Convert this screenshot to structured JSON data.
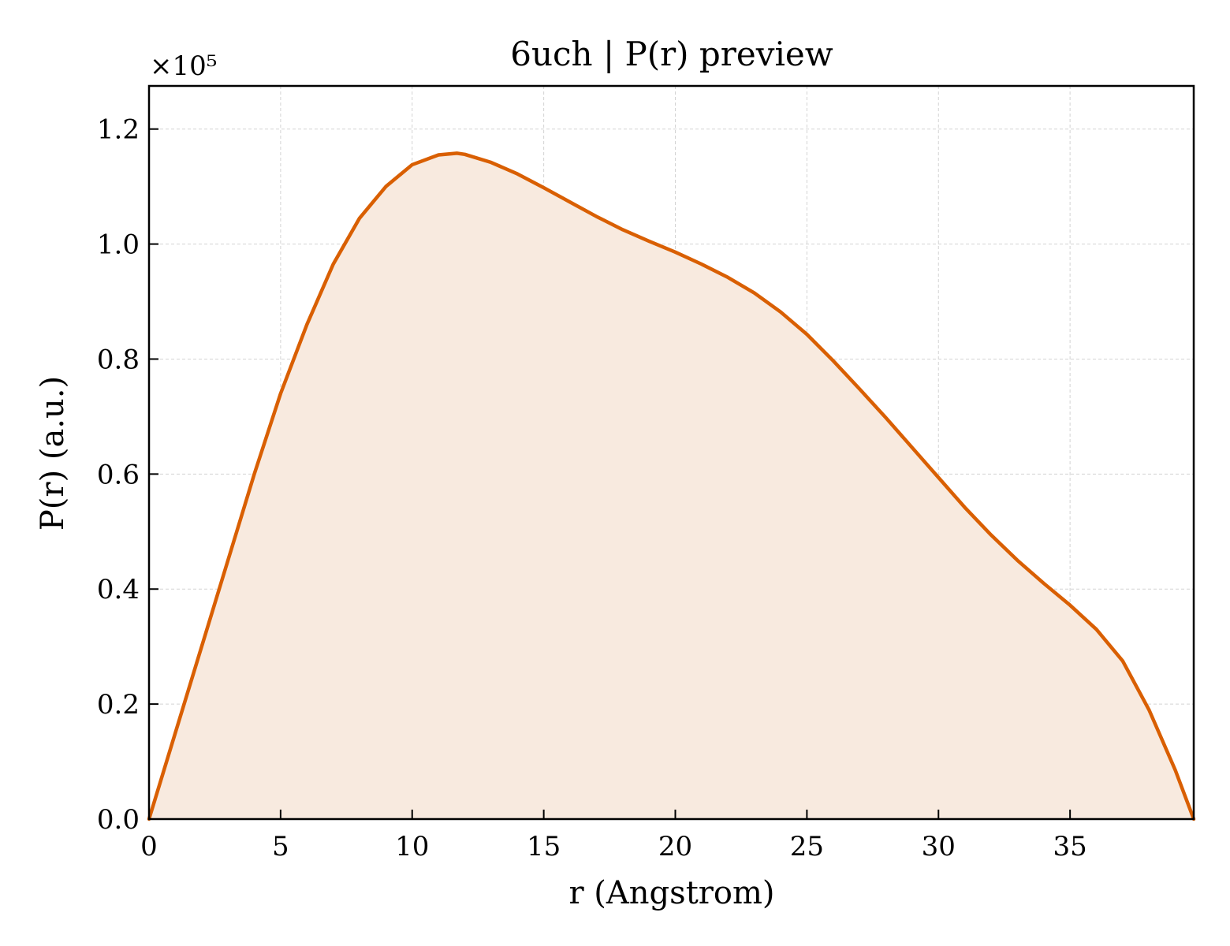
{
  "chart_data": {
    "type": "area",
    "title": "6uch | P(r) preview",
    "xlabel": "r (Angstrom)",
    "ylabel": "P(r) (a.u.)",
    "y_multiplier": "×10⁵",
    "xlim": [
      0,
      39.7
    ],
    "ylim": [
      0,
      1.275
    ],
    "x_ticks": [
      0,
      5,
      10,
      15,
      20,
      25,
      30,
      35
    ],
    "y_ticks": [
      0.0,
      0.2,
      0.4,
      0.6,
      0.8,
      1.0,
      1.2
    ],
    "grid": true,
    "colors": {
      "line": "#d95f02",
      "fill": "#f8eadf"
    },
    "series": [
      {
        "x": [
          0,
          1,
          2,
          3,
          4,
          5,
          6,
          7,
          8,
          9,
          10,
          11,
          11.7,
          12,
          13,
          14,
          15,
          16,
          17,
          18,
          19,
          20,
          21,
          22,
          23,
          24,
          25,
          26,
          27,
          28,
          29,
          30,
          31,
          32,
          33,
          34,
          35,
          36,
          37,
          38,
          39,
          39.7
        ],
        "y": [
          0.0,
          0.15,
          0.3,
          0.45,
          0.6,
          0.74,
          0.86,
          0.965,
          1.045,
          1.1,
          1.138,
          1.155,
          1.158,
          1.156,
          1.142,
          1.122,
          1.098,
          1.073,
          1.048,
          1.025,
          1.005,
          0.986,
          0.965,
          0.942,
          0.915,
          0.882,
          0.843,
          0.797,
          0.748,
          0.698,
          0.646,
          0.594,
          0.542,
          0.494,
          0.45,
          0.41,
          0.372,
          0.33,
          0.275,
          0.19,
          0.085,
          0.0
        ]
      }
    ]
  }
}
